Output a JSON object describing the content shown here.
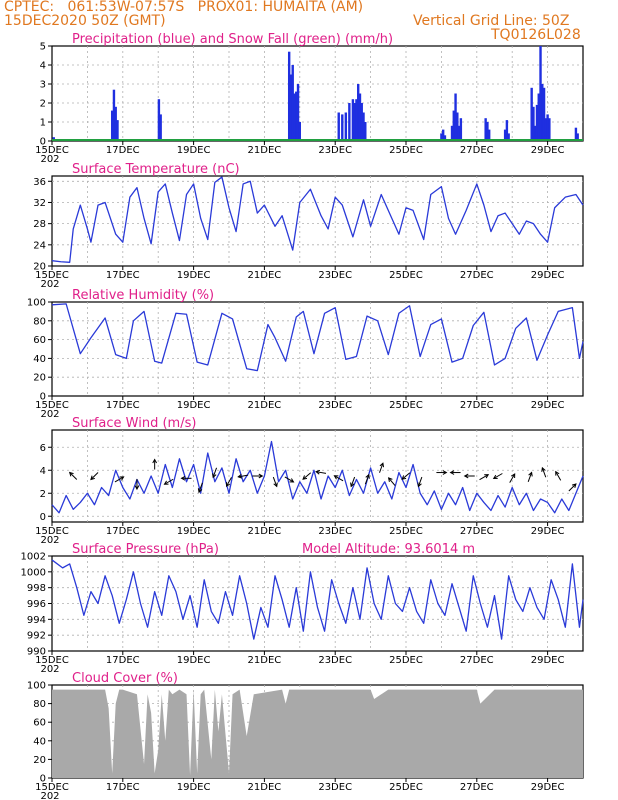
{
  "header": {
    "line1_left": "CPTEC:   061:53W-07:57S   PROX01: HUMAITA (AM)",
    "line2_left": "15DEC2020 50Z (GMT)",
    "line2_right": "Vertical Grid Line: 50Z",
    "line3_right": "TQ0126L028"
  },
  "colors": {
    "line": "#2a3ad8",
    "bar": "#1f2fe0",
    "snow": "#20a040",
    "cloud": "#a9a9a9",
    "title": "#e0208a",
    "header": "#e07820",
    "grid": "#b0b0b0"
  },
  "x_tick_labels": [
    "15DEC",
    "17DEC",
    "19DEC",
    "21DEC",
    "23DEC",
    "25DEC",
    "27DEC",
    "29DEC"
  ],
  "x_tick_prefix": "202",
  "chart_data": [
    {
      "id": "precip",
      "type": "bar",
      "title": "Precipitation (blue) and Snow Fall (green) (mm/h)",
      "ylim": [
        0,
        5
      ],
      "yticks": [
        0,
        1,
        2,
        3,
        4,
        5
      ],
      "x": [
        0.05,
        1.7,
        1.75,
        1.8,
        1.85,
        3.02,
        3.07,
        6.7,
        6.75,
        6.8,
        6.85,
        6.9,
        6.95,
        7.0,
        8.1,
        8.2,
        8.3,
        8.4,
        8.5,
        8.55,
        8.6,
        8.65,
        8.7,
        8.75,
        8.8,
        8.85,
        11.0,
        11.05,
        11.1,
        11.3,
        11.35,
        11.4,
        11.45,
        11.5,
        11.55,
        12.25,
        12.3,
        12.35,
        12.8,
        12.85,
        12.9,
        13.55,
        13.6,
        13.65,
        13.7,
        13.75,
        13.8,
        13.85,
        13.9,
        13.95,
        14.0,
        14.05,
        14.8,
        14.85
      ],
      "values": [
        0.2,
        1.6,
        2.7,
        1.8,
        1.1,
        2.2,
        1.4,
        4.7,
        3.5,
        4.0,
        2.5,
        2.6,
        3.0,
        1.0,
        1.5,
        1.4,
        1.5,
        2.0,
        2.2,
        2.0,
        2.2,
        3.0,
        2.5,
        2.0,
        1.5,
        1.0,
        0.4,
        0.6,
        0.3,
        0.8,
        1.6,
        2.5,
        1.5,
        0.8,
        1.2,
        1.2,
        1.0,
        0.6,
        0.6,
        1.1,
        0.4,
        2.8,
        1.8,
        0.8,
        1.9,
        2.5,
        5.0,
        3.0,
        2.8,
        1.2,
        1.4,
        1.2,
        0.7,
        0.4
      ],
      "snow_values": [
        0.05,
        0.05,
        0.05
      ]
    },
    {
      "id": "temp",
      "type": "line",
      "title": "Surface Temperature (nC)",
      "ylim": [
        20,
        37
      ],
      "yticks": [
        20,
        24,
        28,
        32,
        36
      ],
      "x": [
        0,
        0.25,
        0.5,
        0.6,
        0.8,
        1.0,
        1.1,
        1.3,
        1.5,
        1.8,
        2.0,
        2.2,
        2.4,
        2.6,
        2.8,
        3.0,
        3.2,
        3.4,
        3.6,
        3.8,
        4.0,
        4.2,
        4.4,
        4.6,
        4.8,
        5.0,
        5.2,
        5.4,
        5.6,
        5.8,
        6.0,
        6.3,
        6.5,
        6.8,
        7.0,
        7.3,
        7.6,
        7.8,
        8.0,
        8.2,
        8.5,
        8.8,
        9.0,
        9.3,
        9.6,
        9.8,
        10.0,
        10.2,
        10.5,
        10.7,
        11.0,
        11.2,
        11.4,
        11.7,
        12.0,
        12.2,
        12.4,
        12.6,
        12.8,
        13.0,
        13.2,
        13.4,
        13.6,
        13.8,
        14.0,
        14.2,
        14.5,
        14.8,
        15.0
      ],
      "values": [
        21.0,
        20.8,
        20.7,
        27,
        31.5,
        27,
        24.5,
        31.5,
        32.0,
        26,
        24.5,
        33.0,
        34.8,
        29,
        24.2,
        34.0,
        35.5,
        30,
        24.8,
        33.5,
        35.5,
        29,
        25.0,
        35.8,
        36.8,
        31,
        26.5,
        35.5,
        36.0,
        30.0,
        31.5,
        27.5,
        29.5,
        23.0,
        32.0,
        34.5,
        29.5,
        27.0,
        33.0,
        31.5,
        25.5,
        32.5,
        27.5,
        33.5,
        29.0,
        26.0,
        31.0,
        30.5,
        25.0,
        33.5,
        35.0,
        29.0,
        26.0,
        30.5,
        35.5,
        31.5,
        26.5,
        29.5,
        30.0,
        28.0,
        26.0,
        28.5,
        28.0,
        26.0,
        24.5,
        31.0,
        33.0,
        33.5,
        31.5
      ]
    },
    {
      "id": "rh",
      "type": "line",
      "title": "Relative Humidity (%)",
      "ylim": [
        0,
        100
      ],
      "yticks": [
        0,
        20,
        40,
        60,
        80,
        100
      ],
      "x": [
        0,
        0.4,
        0.8,
        1.1,
        1.5,
        1.8,
        2.1,
        2.3,
        2.6,
        2.9,
        3.1,
        3.5,
        3.8,
        4.1,
        4.4,
        4.8,
        5.1,
        5.5,
        5.8,
        6.1,
        6.3,
        6.6,
        6.9,
        7.1,
        7.4,
        7.7,
        8.0,
        8.3,
        8.6,
        8.9,
        9.2,
        9.5,
        9.8,
        10.1,
        10.4,
        10.7,
        11.0,
        11.3,
        11.6,
        11.9,
        12.2,
        12.5,
        12.8,
        13.1,
        13.4,
        13.7,
        14.0,
        14.3,
        14.7,
        14.9,
        15.0
      ],
      "values": [
        97,
        98,
        45,
        62,
        83,
        44,
        40,
        80,
        90,
        37,
        35,
        88,
        87,
        36,
        33,
        88,
        82,
        29,
        27,
        76,
        62,
        37,
        84,
        90,
        45,
        88,
        94,
        39,
        42,
        85,
        80,
        44,
        88,
        96,
        42,
        76,
        82,
        36,
        40,
        75,
        89,
        33,
        40,
        72,
        83,
        38,
        65,
        90,
        94,
        40,
        58
      ]
    },
    {
      "id": "wind",
      "type": "line",
      "title": "Surface Wind (m/s)",
      "ylim": [
        -0.5,
        7.5
      ],
      "yticks": [
        0,
        2,
        4,
        6
      ],
      "x": [
        0,
        0.2,
        0.4,
        0.6,
        0.8,
        1.0,
        1.2,
        1.4,
        1.6,
        1.8,
        2.0,
        2.2,
        2.4,
        2.6,
        2.8,
        3.0,
        3.2,
        3.4,
        3.6,
        3.8,
        4.0,
        4.2,
        4.4,
        4.6,
        4.8,
        5.0,
        5.2,
        5.4,
        5.6,
        5.8,
        6.0,
        6.2,
        6.4,
        6.6,
        6.8,
        7.0,
        7.2,
        7.4,
        7.6,
        7.8,
        8.0,
        8.2,
        8.4,
        8.6,
        8.8,
        9.0,
        9.2,
        9.4,
        9.6,
        9.8,
        10.0,
        10.2,
        10.4,
        10.6,
        10.8,
        11.0,
        11.2,
        11.4,
        11.6,
        11.8,
        12.0,
        12.2,
        12.4,
        12.6,
        12.8,
        13.0,
        13.2,
        13.4,
        13.6,
        13.8,
        14.0,
        14.2,
        14.4,
        14.6,
        14.8,
        15.0
      ],
      "values": [
        1.0,
        0.3,
        1.8,
        0.6,
        1.2,
        2.0,
        1.0,
        2.5,
        1.8,
        4.0,
        2.5,
        1.5,
        3.2,
        2.0,
        3.5,
        2.0,
        4.5,
        2.5,
        5.0,
        3.0,
        4.5,
        2.0,
        5.5,
        3.0,
        4.2,
        2.0,
        5.0,
        3.0,
        4.0,
        2.0,
        3.5,
        6.5,
        3.0,
        4.0,
        1.5,
        3.0,
        2.0,
        4.0,
        1.5,
        3.5,
        2.5,
        4.0,
        1.8,
        3.2,
        2.0,
        4.2,
        2.0,
        3.0,
        1.5,
        3.8,
        2.5,
        4.5,
        2.0,
        1.0,
        2.2,
        0.6,
        2.0,
        1.0,
        2.5,
        0.5,
        2.0,
        1.2,
        0.5,
        1.8,
        0.8,
        2.5,
        1.0,
        2.0,
        0.5,
        1.5,
        1.2,
        0.3,
        1.5,
        0.5,
        2.0,
        3.5
      ],
      "arrows": [
        {
          "x": 0.6,
          "y": 3.5,
          "dir": 315
        },
        {
          "x": 1.2,
          "y": 3.5,
          "dir": 225
        },
        {
          "x": 1.9,
          "y": 3.2,
          "dir": 60
        },
        {
          "x": 2.4,
          "y": 2.8,
          "dir": 180
        },
        {
          "x": 2.9,
          "y": 4.5,
          "dir": 0
        },
        {
          "x": 3.3,
          "y": 3.0,
          "dir": 240
        },
        {
          "x": 3.8,
          "y": 3.3,
          "dir": 270
        },
        {
          "x": 4.2,
          "y": 2.5,
          "dir": 200
        },
        {
          "x": 4.6,
          "y": 3.8,
          "dir": 200
        },
        {
          "x": 5.0,
          "y": 3.0,
          "dir": 210
        },
        {
          "x": 5.4,
          "y": 3.5,
          "dir": 260
        },
        {
          "x": 5.8,
          "y": 3.5,
          "dir": 90
        },
        {
          "x": 6.3,
          "y": 3.0,
          "dir": 160
        },
        {
          "x": 6.7,
          "y": 3.2,
          "dir": 120
        },
        {
          "x": 7.2,
          "y": 3.5,
          "dir": 230
        },
        {
          "x": 7.6,
          "y": 3.8,
          "dir": 280
        },
        {
          "x": 8.1,
          "y": 3.3,
          "dir": 300
        },
        {
          "x": 8.5,
          "y": 3.0,
          "dir": 200
        },
        {
          "x": 8.9,
          "y": 3.2,
          "dir": 20
        },
        {
          "x": 9.3,
          "y": 4.2,
          "dir": 20
        },
        {
          "x": 9.6,
          "y": 3.0,
          "dir": 320
        },
        {
          "x": 10.0,
          "y": 3.5,
          "dir": 230
        },
        {
          "x": 10.4,
          "y": 3.0,
          "dir": 200
        },
        {
          "x": 11.0,
          "y": 3.8,
          "dir": 90
        },
        {
          "x": 11.4,
          "y": 3.8,
          "dir": 270
        },
        {
          "x": 11.8,
          "y": 3.5,
          "dir": 270
        },
        {
          "x": 12.2,
          "y": 3.4,
          "dir": 60
        },
        {
          "x": 12.6,
          "y": 3.5,
          "dir": 240
        },
        {
          "x": 13.0,
          "y": 3.3,
          "dir": 30
        },
        {
          "x": 13.5,
          "y": 3.4,
          "dir": 20
        },
        {
          "x": 13.9,
          "y": 3.8,
          "dir": 340
        },
        {
          "x": 14.3,
          "y": 3.5,
          "dir": 330
        },
        {
          "x": 14.7,
          "y": 2.5,
          "dir": 45
        }
      ]
    },
    {
      "id": "pres",
      "type": "line",
      "title": "Surface Pressure (hPa)",
      "annotation": "Model Altitude: 93.6014 m",
      "ylim": [
        990,
        1002
      ],
      "yticks": [
        990,
        992,
        994,
        996,
        998,
        1000,
        1002
      ],
      "x": [
        0,
        0.3,
        0.5,
        0.7,
        0.9,
        1.1,
        1.3,
        1.5,
        1.7,
        1.9,
        2.1,
        2.3,
        2.5,
        2.7,
        2.9,
        3.1,
        3.3,
        3.5,
        3.7,
        3.9,
        4.1,
        4.3,
        4.5,
        4.7,
        4.9,
        5.1,
        5.3,
        5.5,
        5.7,
        5.9,
        6.1,
        6.3,
        6.5,
        6.7,
        6.9,
        7.1,
        7.3,
        7.5,
        7.7,
        7.9,
        8.1,
        8.3,
        8.5,
        8.7,
        8.9,
        9.1,
        9.3,
        9.5,
        9.7,
        9.9,
        10.1,
        10.3,
        10.5,
        10.7,
        10.9,
        11.1,
        11.3,
        11.5,
        11.7,
        11.9,
        12.1,
        12.3,
        12.5,
        12.7,
        12.9,
        13.1,
        13.3,
        13.5,
        13.7,
        13.9,
        14.1,
        14.3,
        14.5,
        14.7,
        14.9,
        15.0
      ],
      "values": [
        1001.5,
        1000.5,
        1001.0,
        998.0,
        994.5,
        997.5,
        996.0,
        999.5,
        997.0,
        993.5,
        996.5,
        1000.0,
        996.0,
        993.0,
        997.5,
        994.5,
        999.5,
        997.5,
        994.0,
        997.0,
        993.0,
        999.0,
        995.0,
        993.5,
        997.5,
        994.5,
        999.5,
        996.0,
        991.5,
        995.5,
        993.0,
        999.5,
        996.5,
        993.0,
        998.0,
        992.5,
        1000.0,
        995.5,
        992.5,
        999.0,
        996.0,
        993.5,
        998.0,
        994.0,
        1000.5,
        996.0,
        994.0,
        999.5,
        996.0,
        995.0,
        998.0,
        995.0,
        993.5,
        999.0,
        996.0,
        994.5,
        998.5,
        995.5,
        992.5,
        999.5,
        996.0,
        993.0,
        997.0,
        991.5,
        999.5,
        996.5,
        995.0,
        998.0,
        995.5,
        994.0,
        999.0,
        996.5,
        993.0,
        1001.0,
        993.0,
        996.5
      ]
    },
    {
      "id": "cloud",
      "type": "area",
      "title": "Cloud Cover (%)",
      "ylim": [
        0,
        100
      ],
      "yticks": [
        0,
        20,
        40,
        60,
        80,
        100
      ],
      "x": [
        0,
        1.5,
        1.6,
        1.7,
        1.8,
        1.9,
        2.0,
        2.4,
        2.6,
        2.7,
        2.8,
        2.9,
        3.0,
        3.1,
        3.2,
        3.3,
        3.4,
        3.6,
        3.8,
        3.9,
        4.0,
        4.1,
        4.2,
        4.3,
        4.5,
        4.6,
        4.7,
        4.8,
        5.0,
        5.1,
        5.3,
        5.5,
        5.7,
        6.5,
        6.6,
        6.7,
        7.0,
        7.5,
        8.0,
        9.0,
        9.1,
        9.5,
        10.0,
        11.0,
        11.5,
        12.0,
        12.1,
        12.5,
        13.0,
        13.5,
        14.0,
        15.0
      ],
      "values": [
        95,
        95,
        75,
        5,
        80,
        95,
        95,
        90,
        15,
        90,
        70,
        5,
        30,
        90,
        40,
        95,
        90,
        95,
        90,
        3,
        95,
        5,
        90,
        95,
        20,
        95,
        50,
        90,
        5,
        90,
        95,
        45,
        90,
        95,
        80,
        95,
        95,
        95,
        95,
        95,
        85,
        95,
        95,
        95,
        95,
        95,
        80,
        95,
        95,
        95,
        95,
        95
      ]
    }
  ]
}
